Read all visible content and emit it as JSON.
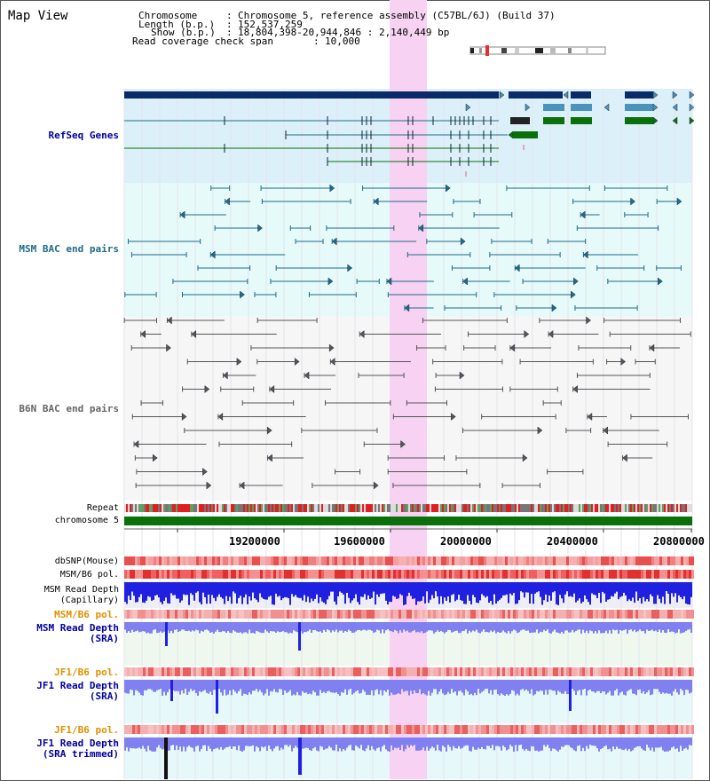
{
  "app": {
    "title": "Map View"
  },
  "info": {
    "chromosome_label": "Chromosome",
    "chromosome_value": "Chromosome 5, reference assembly (C57BL/6J) (Build 37)",
    "length_label": "Length (b.p.)",
    "length_value": "152,537,259",
    "show_label": "Show (b.p.)",
    "show_value": "18,804,398-20,944,846 : 2,140,449 bp",
    "coverage_label": "Read coverage check span",
    "coverage_value": "10,000"
  },
  "tracks": {
    "refseq": "RefSeq Genes",
    "msm_bac": "MSM BAC end pairs",
    "b6n_bac": "B6N BAC end pairs",
    "repeat": "Repeat",
    "chrom": "chromosome 5",
    "dbsnp": "dbSNP(Mouse)",
    "msm_b6_pol": "MSM/B6 pol.",
    "msm_depth_cap_1": "MSM Read Depth",
    "msm_depth_cap_2": "(Capillary)",
    "msm_b6_pol2": "MSM/B6 pol.",
    "msm_depth_sra_1": "MSM Read Depth",
    "msm_depth_sra_2": "(SRA)",
    "jf1_b6_pol": "JF1/B6 pol.",
    "jf1_depth_sra_1": "JF1 Read Depth",
    "jf1_depth_sra_2": "(SRA)",
    "jf1_b6_pol2": "JF1/B6 pol.",
    "jf1_depth_trim_1": "JF1 Read Depth",
    "jf1_depth_trim_2": "(SRA trimmed)"
  },
  "axis": {
    "ticks": [
      "19200000",
      "19600000",
      "20000000",
      "20400000",
      "20800000"
    ]
  },
  "colors": {
    "refseq_bg": "#dcf0fa",
    "msm_bg": "#e6fafa",
    "b6n_bg": "#f6f6f6",
    "highlight": "#f7d2f2",
    "gene_navy": "#0a2a6a",
    "gene_teal": "#4a93bb",
    "gene_green": "#0a700a",
    "msm_pair": "#1f6b8a",
    "b6n_pair": "#555555",
    "depth_blue": "#2020e0",
    "depth_light": "#8080f0",
    "pol_label": "#e09000",
    "track_label": "#0000a0"
  }
}
